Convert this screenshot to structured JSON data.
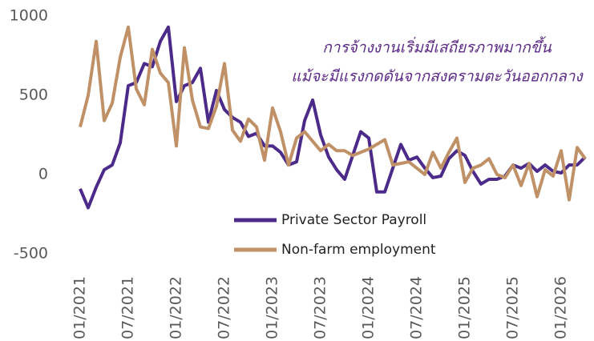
{
  "chart_data": {
    "type": "line",
    "annotations": [
      "การจ้างงานเริ่มมีเสถียรภาพมากขึ้น",
      "แม้จะมีแรงกดดันจากสงครามตะวันออกกลาง"
    ],
    "categories": [
      "01/2021",
      null,
      null,
      null,
      null,
      null,
      "07/2021",
      null,
      null,
      null,
      null,
      null,
      "01/2022",
      null,
      null,
      null,
      null,
      null,
      "07/2022",
      null,
      null,
      null,
      null,
      null,
      "01/2023",
      null,
      null,
      null,
      null,
      null,
      "07/2023",
      null,
      null,
      null,
      null,
      null,
      "01/2024",
      null,
      null,
      null,
      null,
      null,
      "07/2024",
      null,
      null,
      null,
      null,
      null,
      "01/2025",
      null,
      null,
      null,
      null,
      null,
      "07/2025",
      null,
      null,
      null,
      null,
      null,
      "01/2026",
      null,
      null,
      null
    ],
    "series": [
      {
        "name": "Private Sector Payroll",
        "color": "#4b2a8a",
        "values": [
          -90,
          -210,
          -80,
          30,
          60,
          200,
          560,
          580,
          700,
          680,
          840,
          930,
          460,
          560,
          580,
          670,
          330,
          530,
          410,
          360,
          330,
          240,
          260,
          180,
          180,
          140,
          60,
          80,
          340,
          470,
          250,
          110,
          30,
          -30,
          120,
          270,
          230,
          -110,
          -110,
          40,
          190,
          90,
          110,
          40,
          -20,
          -10,
          100,
          150,
          120,
          20,
          -60,
          -30,
          -30,
          -10,
          60,
          40,
          70,
          20,
          60,
          20,
          10,
          60,
          60,
          110
        ]
      },
      {
        "name": "Non-farm employment",
        "color": "#c09167",
        "values": [
          300,
          500,
          840,
          340,
          450,
          740,
          930,
          540,
          440,
          790,
          640,
          580,
          180,
          800,
          470,
          300,
          290,
          430,
          700,
          280,
          210,
          350,
          300,
          90,
          420,
          270,
          60,
          230,
          270,
          210,
          150,
          190,
          150,
          150,
          120,
          140,
          160,
          190,
          220,
          60,
          70,
          80,
          40,
          0,
          140,
          40,
          140,
          230,
          -50,
          40,
          60,
          100,
          0,
          -20,
          60,
          -70,
          70,
          -140,
          30,
          -10,
          150,
          -160,
          170,
          100
        ]
      }
    ],
    "ylim": [
      -500,
      1000
    ],
    "yticks": [
      -500,
      0,
      500,
      1000
    ],
    "grid": false
  }
}
